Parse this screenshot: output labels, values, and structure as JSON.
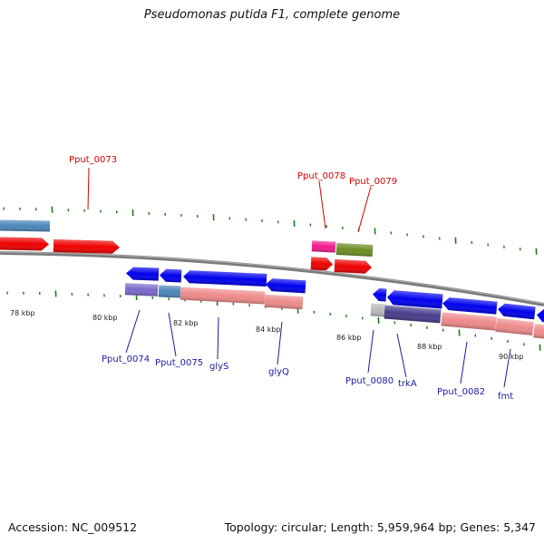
{
  "title": "Pseudomonas putida F1, complete genome",
  "footer": {
    "accession": "Accession: NC_009512",
    "summary": "Topology: circular; Length: 5,959,964 bp; Genes: 5,347"
  },
  "colors": {
    "forward_gene": "#ee0000",
    "reverse_gene": "#0000ee",
    "forward_label": "#dd0000",
    "reverse_label": "#1a1aa6",
    "backbone": "#808080",
    "tick": "#1f7a1f",
    "cog_steelblue": "#4a86b8",
    "cog_pink": "#ee1c8c",
    "cog_olive": "#6b8e23",
    "cog_lightpurple": "#7b68c9",
    "cog_salmon": "#ee8a8a",
    "cog_darkslate": "#483d8b",
    "cog_gray": "#b8b8b8"
  },
  "scale_labels": [
    "78 kbp",
    "80 kbp",
    "82 kbp",
    "84 kbp",
    "86 kbp",
    "88 kbp",
    "90 kbp"
  ],
  "gene_labels": {
    "pput_0073": "Pput_0073",
    "pput_0078": "Pput_0078",
    "pput_0079": "Pput_0079",
    "pput_0074": "Pput_0074",
    "pput_0075": "Pput_0075",
    "glys": "glyS",
    "glyq": "glyQ",
    "pput_0080": "Pput_0080",
    "trka": "trkA",
    "pput_0082": "Pput_0082",
    "fmt": "fmt"
  }
}
